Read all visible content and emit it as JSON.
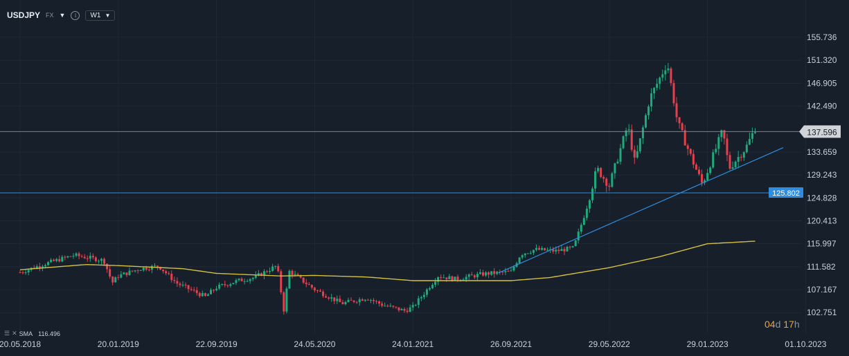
{
  "toolbar": {
    "symbol": "USDJPY",
    "market": "FX",
    "timeframe": "W1",
    "caret_icon": "caret-down-icon",
    "info_icon": "info-icon"
  },
  "legend": {
    "indicator": "SMA",
    "value": "116.496"
  },
  "countdown": {
    "d_val": "04",
    "d_unit": "d",
    "h_val": "17",
    "h_unit": "h"
  },
  "colors": {
    "background": "#161f2a",
    "up": "#1faa7c",
    "down": "#e5404e",
    "sma": "#d6c23d",
    "trendline": "#2f8ddf",
    "hline": "#2f8ddf"
  },
  "chart_data": {
    "type": "candlestick",
    "symbol": "USDJPY",
    "timeframe": "W1",
    "x_tick_labels": [
      "20.05.2018",
      "20.01.2019",
      "22.09.2019",
      "24.05.2020",
      "24.01.2021",
      "26.09.2021",
      "29.05.2022",
      "29.01.2023",
      "01.10.2023"
    ],
    "y_tick_labels": [
      "155.736",
      "151.320",
      "146.905",
      "142.490",
      "133.659",
      "129.243",
      "124.828",
      "120.413",
      "115.997",
      "111.582",
      "107.167",
      "102.751"
    ],
    "ylim": [
      102.751,
      155.736
    ],
    "current_price": "137.596",
    "horizontal_line": "125.802",
    "sma": {
      "label": "SMA",
      "value": "116.496"
    },
    "price_path": [
      [
        "2018-05-20",
        110.5
      ],
      [
        "2018-07-15",
        112.0
      ],
      [
        "2018-10-01",
        113.8
      ],
      [
        "2018-12-15",
        112.8
      ],
      [
        "2019-01-05",
        108.5
      ],
      [
        "2019-01-20",
        109.8
      ],
      [
        "2019-03-15",
        111.2
      ],
      [
        "2019-05-01",
        111.7
      ],
      [
        "2019-06-15",
        108.4
      ],
      [
        "2019-08-25",
        105.8
      ],
      [
        "2019-09-22",
        107.6
      ],
      [
        "2019-11-15",
        108.9
      ],
      [
        "2019-12-25",
        109.5
      ],
      [
        "2020-02-20",
        111.8
      ],
      [
        "2020-03-09",
        102.8
      ],
      [
        "2020-03-20",
        110.8
      ],
      [
        "2020-05-24",
        107.2
      ],
      [
        "2020-07-31",
        104.5
      ],
      [
        "2020-10-01",
        105.6
      ],
      [
        "2020-11-10",
        104.2
      ],
      [
        "2021-01-03",
        103.1
      ],
      [
        "2021-01-24",
        103.8
      ],
      [
        "2021-03-28",
        109.8
      ],
      [
        "2021-05-10",
        109.2
      ],
      [
        "2021-07-20",
        110.2
      ],
      [
        "2021-09-26",
        110.6
      ],
      [
        "2021-10-20",
        114.0
      ],
      [
        "2021-11-25",
        114.9
      ],
      [
        "2022-01-15",
        114.6
      ],
      [
        "2022-03-01",
        115.2
      ],
      [
        "2022-04-01",
        122.5
      ],
      [
        "2022-04-28",
        130.5
      ],
      [
        "2022-05-29",
        127.2
      ],
      [
        "2022-07-14",
        138.8
      ],
      [
        "2022-08-01",
        131.5
      ],
      [
        "2022-09-07",
        144.0
      ],
      [
        "2022-10-21",
        150.8
      ],
      [
        "2022-11-15",
        139.5
      ],
      [
        "2022-12-20",
        132.5
      ],
      [
        "2023-01-16",
        127.5
      ],
      [
        "2023-01-29",
        130.0
      ],
      [
        "2023-03-08",
        137.8
      ],
      [
        "2023-03-24",
        130.5
      ],
      [
        "2023-05-05",
        134.5
      ],
      [
        "2023-05-29",
        138.4
      ]
    ],
    "sma_path": [
      [
        "2018-05-20",
        111.0
      ],
      [
        "2018-11-01",
        112.0
      ],
      [
        "2019-01-20",
        111.8
      ],
      [
        "2019-07-01",
        111.2
      ],
      [
        "2019-09-22",
        110.3
      ],
      [
        "2020-03-01",
        109.8
      ],
      [
        "2020-05-24",
        109.9
      ],
      [
        "2020-10-01",
        109.6
      ],
      [
        "2021-01-24",
        108.9
      ],
      [
        "2021-09-26",
        108.9
      ],
      [
        "2022-01-01",
        109.5
      ],
      [
        "2022-05-29",
        111.4
      ],
      [
        "2022-10-01",
        113.5
      ],
      [
        "2023-01-29",
        116.0
      ],
      [
        "2023-05-29",
        116.5
      ]
    ],
    "trendline": [
      [
        "2021-08-26",
        110.4
      ],
      [
        "2023-08-06",
        134.5
      ]
    ]
  }
}
